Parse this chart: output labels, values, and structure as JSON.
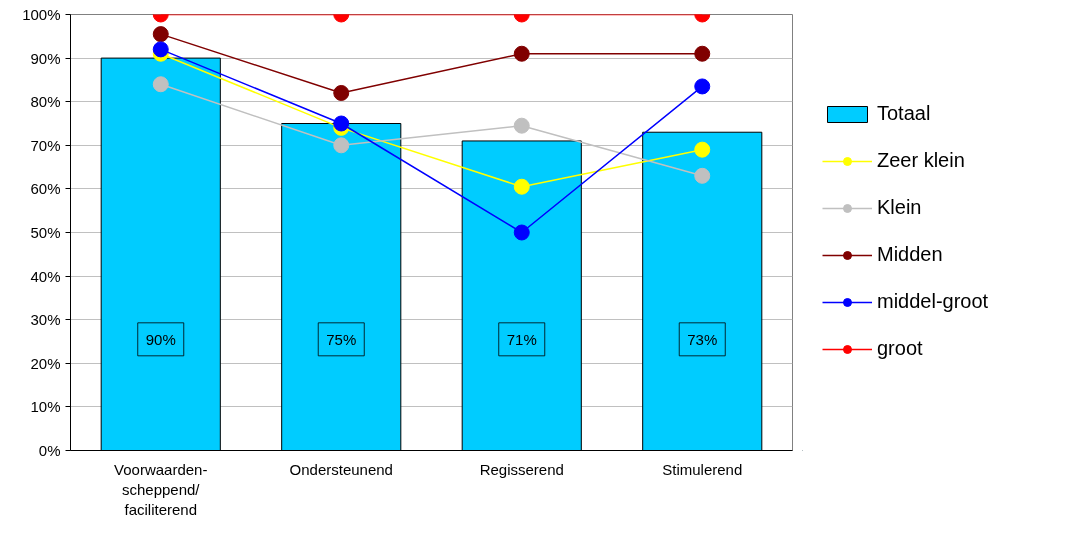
{
  "chart_data": {
    "type": "bar",
    "categories": [
      "Voorwaarden-\nscheppend/\nfaciliterend",
      "Ondersteunend",
      "Regisserend",
      "Stimulerend"
    ],
    "series": [
      {
        "name": "Totaal",
        "color": "#00ccff",
        "values": [
          90,
          75,
          71,
          73
        ],
        "value_labels": [
          "90%",
          "75%",
          "71%",
          "73%"
        ]
      },
      {
        "name": "Zeer klein",
        "type": "line",
        "color": "#ffff00",
        "values": [
          91,
          74,
          60.5,
          69
        ]
      },
      {
        "name": "Klein",
        "type": "line",
        "color": "#c0c0c0",
        "values": [
          84,
          70,
          74.5,
          63
        ]
      },
      {
        "name": "Midden",
        "type": "line",
        "color": "#800000",
        "values": [
          95.5,
          82,
          91,
          91
        ]
      },
      {
        "name": "middel-groot",
        "type": "line",
        "color": "#0000ff",
        "values": [
          92,
          75,
          50,
          83.5
        ]
      },
      {
        "name": "groot",
        "type": "line",
        "color": "#ff0000",
        "values": [
          100,
          100,
          100,
          100
        ]
      }
    ],
    "ylim": [
      0,
      100
    ],
    "yticks": [
      {
        "value": 0,
        "label": "0%"
      },
      {
        "value": 10,
        "label": "10%"
      },
      {
        "value": 20,
        "label": "20%"
      },
      {
        "value": 30,
        "label": "30%"
      },
      {
        "value": 40,
        "label": "40%"
      },
      {
        "value": 50,
        "label": "50%"
      },
      {
        "value": 60,
        "label": "60%"
      },
      {
        "value": 70,
        "label": "70%"
      },
      {
        "value": 80,
        "label": "80%"
      },
      {
        "value": 90,
        "label": "90%"
      },
      {
        "value": 100,
        "label": "100%"
      }
    ],
    "grid": "y",
    "legend": "right",
    "marker": "circle",
    "line_style": "solid"
  }
}
